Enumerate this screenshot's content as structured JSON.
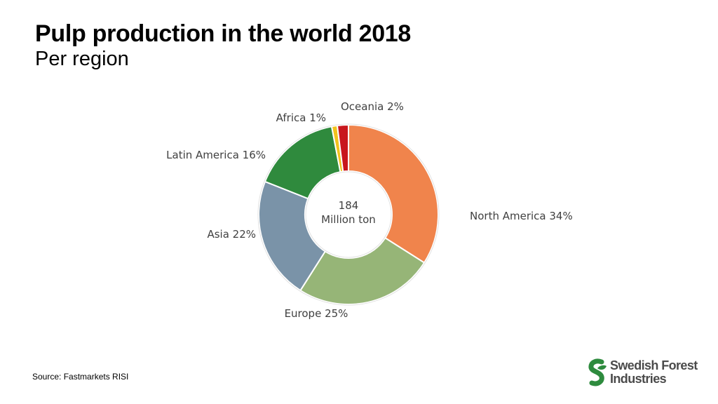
{
  "header": {
    "title": "Pulp production in the world 2018",
    "subtitle": "Per region"
  },
  "chart_data": {
    "type": "pie",
    "variant": "donut",
    "title": "Pulp production in the world 2018",
    "subtitle": "Per region",
    "center_label": [
      "184",
      "Million ton"
    ],
    "slices": [
      {
        "name": "North America",
        "value": 34,
        "label": "North America 34%",
        "color": "#F0844C"
      },
      {
        "name": "Europe",
        "value": 25,
        "label": "Europe 25%",
        "color": "#96B577"
      },
      {
        "name": "Asia",
        "value": 22,
        "label": "Asia 22%",
        "color": "#7A93A8"
      },
      {
        "name": "Latin America",
        "value": 16,
        "label": "Latin America 16%",
        "color": "#2F8A3D"
      },
      {
        "name": "Africa",
        "value": 1,
        "label": "Africa 1%",
        "color": "#F2C21C"
      },
      {
        "name": "Oceania",
        "value": 2,
        "label": "Oceania 2%",
        "color": "#C8161D"
      }
    ],
    "start_angle_deg": 0,
    "direction": "clockwise",
    "legend": "none"
  },
  "footer": {
    "source": "Source: Fastmarkets RISI",
    "logo_line1": "Swedish Forest",
    "logo_line2": "Industries",
    "logo_color": "#2E8B3E"
  }
}
